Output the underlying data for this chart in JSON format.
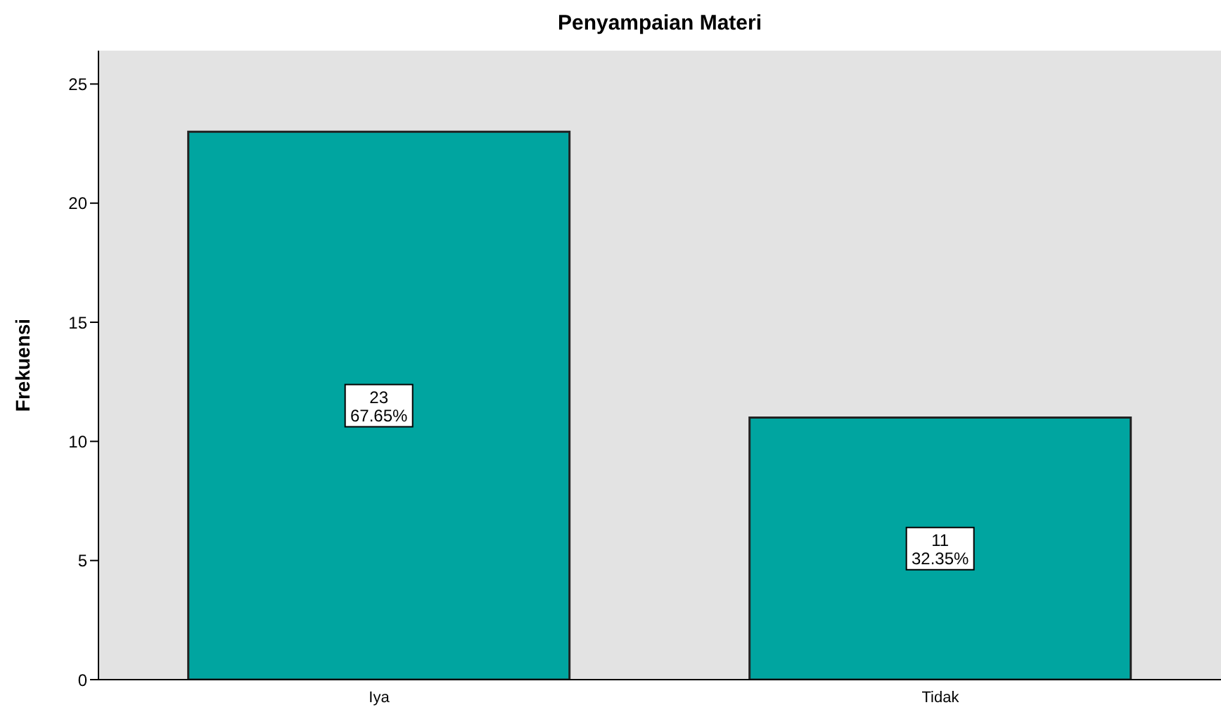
{
  "chart_data": {
    "type": "bar",
    "title": "Penyampaian Materi",
    "ylabel": "Frekuensi",
    "categories": [
      "Iya",
      "Tidak"
    ],
    "values": [
      23,
      11
    ],
    "value_labels": [
      "23\n67.65%",
      "11\n32.35%"
    ],
    "color": "#00a5a0",
    "ylim": [
      0,
      26.4
    ],
    "yticks": [
      0,
      5,
      10,
      15,
      20,
      25
    ]
  }
}
